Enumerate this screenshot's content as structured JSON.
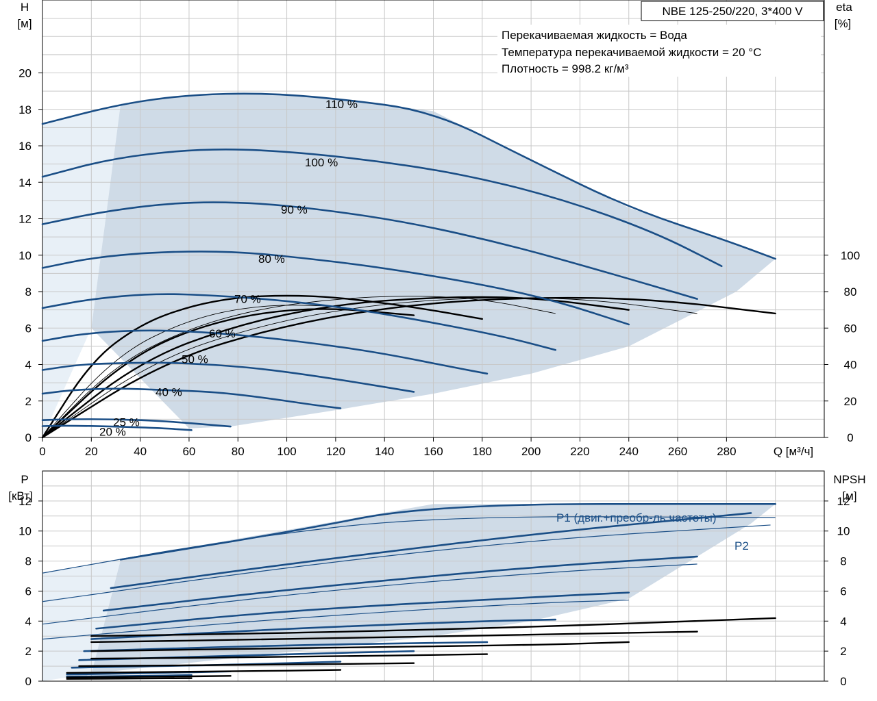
{
  "title_box": "NBE 125-250/220, 3*400 V",
  "info_lines": [
    "Перекачиваемая жидкость = Вода",
    "Температура перекачиваемой жидкости = 20 °C",
    "Плотность = 998.2 кг/м³"
  ],
  "colors": {
    "curve_blue": "#1a4e86",
    "region_dark": "#cfdbe7",
    "region_light": "#e8f0f7"
  },
  "chart_data": [
    {
      "type": "line",
      "name": "head",
      "y_axis_label": [
        "H",
        "[м]"
      ],
      "y2_axis_label": [
        "eta",
        "[%]"
      ],
      "x_axis_label": "Q [м³/ч]",
      "xlim": [
        0,
        320
      ],
      "ylim": [
        0,
        24
      ],
      "y2lim": [
        0,
        100
      ],
      "x_ticks": [
        0,
        20,
        40,
        60,
        80,
        100,
        120,
        140,
        160,
        180,
        200,
        220,
        240,
        260,
        280
      ],
      "y_ticks": [
        0,
        2,
        4,
        6,
        8,
        10,
        12,
        14,
        16,
        18,
        20
      ],
      "y2_ticks": [
        0,
        20,
        40,
        60,
        80,
        100
      ],
      "grid": true,
      "speed_curves": [
        {
          "label": "110 %",
          "x": [
            0,
            32,
            60,
            90,
            120,
            160,
            200,
            240,
            280,
            300
          ],
          "y": [
            17.2,
            18.3,
            18.8,
            18.9,
            18.6,
            17.9,
            15.2,
            12.6,
            10.8,
            9.8
          ]
        },
        {
          "label": "100 %",
          "x": [
            0,
            28,
            60,
            90,
            130,
            170,
            210,
            250,
            278
          ],
          "y": [
            14.3,
            15.3,
            15.8,
            15.8,
            15.3,
            14.5,
            13.2,
            11.3,
            9.4
          ]
        },
        {
          "label": "90 %",
          "x": [
            0,
            25,
            55,
            85,
            115,
            150,
            190,
            230,
            268
          ],
          "y": [
            11.7,
            12.4,
            12.9,
            12.9,
            12.5,
            11.8,
            10.6,
            9.1,
            7.6
          ]
        },
        {
          "label": "80 %",
          "x": [
            0,
            22,
            50,
            80,
            110,
            140,
            180,
            210,
            240
          ],
          "y": [
            9.3,
            9.9,
            10.2,
            10.2,
            9.8,
            9.3,
            8.4,
            7.5,
            6.2
          ]
        },
        {
          "label": "70 %",
          "x": [
            0,
            20,
            45,
            70,
            100,
            130,
            160,
            190,
            210
          ],
          "y": [
            7.1,
            7.6,
            7.9,
            7.8,
            7.5,
            7.0,
            6.3,
            5.5,
            4.8
          ]
        },
        {
          "label": "60 %",
          "x": [
            0,
            17,
            40,
            65,
            90,
            115,
            140,
            170,
            182
          ],
          "y": [
            5.3,
            5.7,
            5.9,
            5.8,
            5.5,
            5.1,
            4.6,
            3.8,
            3.5
          ]
        },
        {
          "label": "50 %",
          "x": [
            0,
            15,
            35,
            55,
            80,
            100,
            125,
            152
          ],
          "y": [
            3.7,
            4.0,
            4.1,
            4.1,
            3.9,
            3.6,
            3.1,
            2.5
          ]
        },
        {
          "label": "40 %",
          "x": [
            0,
            12,
            30,
            50,
            70,
            90,
            110,
            122
          ],
          "y": [
            2.4,
            2.6,
            2.7,
            2.6,
            2.5,
            2.2,
            1.8,
            1.6
          ]
        },
        {
          "label": "25 %",
          "x": [
            0,
            10,
            30,
            50,
            77
          ],
          "y": [
            0.95,
            1.0,
            1.0,
            0.9,
            0.6
          ]
        },
        {
          "label": "20 %",
          "x": [
            0,
            10,
            30,
            50,
            61
          ],
          "y": [
            0.62,
            0.65,
            0.6,
            0.5,
            0.4
          ]
        }
      ],
      "efficiency_curves": [
        {
          "x": [
            0,
            20,
            40,
            60,
            80,
            100,
            120,
            150,
            180
          ],
          "eta": [
            0,
            42,
            62,
            72,
            77,
            78,
            77,
            72,
            65
          ]
        },
        {
          "x": [
            0,
            30,
            60,
            90,
            120,
            150,
            180,
            210
          ],
          "eta": [
            0,
            40,
            60,
            71,
            76,
            78,
            76,
            68
          ]
        },
        {
          "x": [
            0,
            40,
            80,
            120,
            160,
            200,
            240
          ],
          "eta": [
            0,
            42,
            62,
            73,
            77,
            77,
            70
          ]
        },
        {
          "x": [
            0,
            45,
            90,
            135,
            180,
            225,
            268
          ],
          "eta": [
            0,
            42,
            62,
            73,
            77,
            76,
            68
          ]
        },
        {
          "x": [
            0,
            50,
            100,
            150,
            200,
            250,
            300
          ],
          "eta": [
            0,
            42,
            62,
            73,
            77,
            76,
            68
          ]
        },
        {
          "x": [
            0,
            30,
            60,
            90,
            122
          ],
          "eta": [
            0,
            45,
            65,
            73,
            72
          ]
        },
        {
          "x": [
            0,
            35,
            70,
            110,
            152
          ],
          "eta": [
            0,
            44,
            64,
            72,
            67
          ]
        }
      ]
    },
    {
      "type": "line",
      "name": "power",
      "y_axis_label": [
        "P",
        "[кВт]"
      ],
      "y2_axis_label": [
        "NPSH",
        "[м]"
      ],
      "xlim": [
        0,
        320
      ],
      "ylim": [
        0,
        14
      ],
      "y_ticks": [
        0,
        2,
        4,
        6,
        8,
        10,
        12
      ],
      "y2_ticks": [
        0,
        2,
        4,
        6,
        8,
        10,
        12
      ],
      "grid": true,
      "annotations": [
        "P1 (двиг.+преобр-ль частоты)",
        "P2"
      ],
      "p1_curves": [
        {
          "x": [
            32,
            100,
            160,
            300
          ],
          "y": [
            8.1,
            9.9,
            11.8,
            11.8
          ]
        },
        {
          "x": [
            28,
            100,
            200,
            290
          ],
          "y": [
            6.2,
            7.8,
            9.8,
            11.2
          ]
        },
        {
          "x": [
            25,
            100,
            200,
            268
          ],
          "y": [
            4.7,
            6.1,
            7.6,
            8.3
          ]
        },
        {
          "x": [
            22,
            100,
            200,
            240
          ],
          "y": [
            3.5,
            4.7,
            5.6,
            5.9
          ]
        },
        {
          "x": [
            20,
            100,
            180,
            210
          ],
          "y": [
            2.8,
            3.5,
            4.0,
            4.1
          ]
        },
        {
          "x": [
            17,
            100,
            182
          ],
          "y": [
            2.0,
            2.4,
            2.6
          ]
        },
        {
          "x": [
            15,
            100,
            152
          ],
          "y": [
            1.4,
            1.8,
            2.0
          ]
        },
        {
          "x": [
            12,
            80,
            122
          ],
          "y": [
            0.9,
            1.1,
            1.3
          ]
        },
        {
          "x": [
            10,
            50,
            77
          ],
          "y": [
            0.45,
            0.55,
            0.65
          ]
        },
        {
          "x": [
            10,
            40,
            61
          ],
          "y": [
            0.3,
            0.35,
            0.4
          ]
        }
      ],
      "p2_curves": [
        {
          "x": [
            0,
            80,
            160,
            300
          ],
          "y": [
            7.2,
            9.5,
            11.0,
            10.9
          ]
        },
        {
          "x": [
            0,
            100,
            200,
            298
          ],
          "y": [
            5.3,
            7.6,
            9.4,
            10.4
          ]
        },
        {
          "x": [
            0,
            100,
            200,
            268
          ],
          "y": [
            3.8,
            5.8,
            7.2,
            7.8
          ]
        },
        {
          "x": [
            0,
            100,
            200,
            240
          ],
          "y": [
            2.8,
            4.2,
            5.2,
            5.4
          ]
        }
      ],
      "npsh_curves": [
        {
          "x": [
            20,
            100,
            200,
            300
          ],
          "y": [
            3.0,
            3.2,
            3.6,
            4.2
          ]
        },
        {
          "x": [
            20,
            100,
            200,
            268
          ],
          "y": [
            2.6,
            2.8,
            3.1,
            3.3
          ]
        },
        {
          "x": [
            20,
            100,
            200,
            240
          ],
          "y": [
            2.0,
            2.2,
            2.4,
            2.6
          ]
        },
        {
          "x": [
            20,
            100,
            182
          ],
          "y": [
            1.5,
            1.6,
            1.8
          ]
        },
        {
          "x": [
            15,
            100,
            152
          ],
          "y": [
            1.0,
            1.1,
            1.2
          ]
        },
        {
          "x": [
            10,
            80,
            122
          ],
          "y": [
            0.55,
            0.65,
            0.75
          ]
        },
        {
          "x": [
            10,
            50,
            77
          ],
          "y": [
            0.25,
            0.3,
            0.35
          ]
        },
        {
          "x": [
            10,
            40,
            61
          ],
          "y": [
            0.15,
            0.18,
            0.2
          ]
        }
      ]
    }
  ]
}
